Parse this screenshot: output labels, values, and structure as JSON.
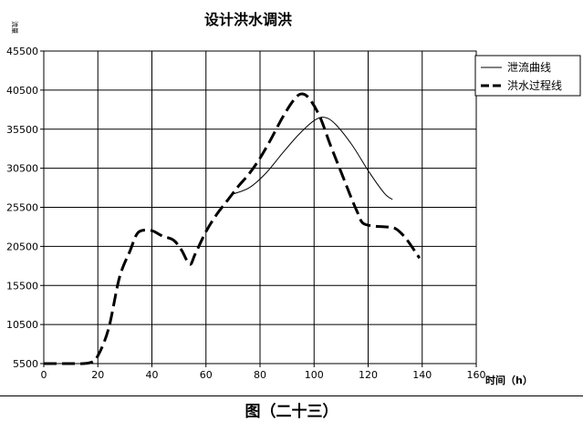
{
  "figure_caption": "图（二十三）",
  "chart_data": {
    "type": "line",
    "title": "设计洪水调洪",
    "ylabel": "流量",
    "xlabel": "时间（h）",
    "xlim": [
      0,
      160
    ],
    "ylim": [
      5500,
      45500
    ],
    "x_ticks": [
      "0",
      "20",
      "40",
      "60",
      "80",
      "100",
      "120",
      "140",
      "160"
    ],
    "y_ticks": [
      "5500",
      "10500",
      "15500",
      "20500",
      "25500",
      "30500",
      "35500",
      "40500",
      "45500"
    ],
    "grid": true,
    "legend_position": "top-right",
    "series": [
      {
        "name": "泄流曲线",
        "style": "thin-solid",
        "color": "#000000",
        "points": [
          [
            70,
            27200
          ],
          [
            76,
            28000
          ],
          [
            82,
            29800
          ],
          [
            88,
            32300
          ],
          [
            94,
            34700
          ],
          [
            100,
            36600
          ],
          [
            104,
            37000
          ],
          [
            108,
            36100
          ],
          [
            114,
            33500
          ],
          [
            120,
            30200
          ],
          [
            126,
            27300
          ],
          [
            129,
            26500
          ]
        ]
      },
      {
        "name": "洪水过程线",
        "style": "thick-dashed",
        "color": "#000000",
        "points": [
          [
            0,
            5500
          ],
          [
            10,
            5500
          ],
          [
            17,
            5600
          ],
          [
            20,
            6500
          ],
          [
            24,
            10000
          ],
          [
            28,
            16500
          ],
          [
            32,
            20000
          ],
          [
            34,
            21800
          ],
          [
            36,
            22500
          ],
          [
            40,
            22500
          ],
          [
            44,
            21800
          ],
          [
            48,
            21300
          ],
          [
            51,
            20000
          ],
          [
            54,
            18200
          ],
          [
            56,
            19500
          ],
          [
            60,
            22400
          ],
          [
            64,
            24600
          ],
          [
            68,
            26400
          ],
          [
            72,
            28200
          ],
          [
            76,
            29800
          ],
          [
            80,
            31800
          ],
          [
            84,
            34200
          ],
          [
            88,
            36800
          ],
          [
            92,
            39000
          ],
          [
            95,
            40000
          ],
          [
            98,
            39500
          ],
          [
            102,
            37200
          ],
          [
            106,
            33500
          ],
          [
            110,
            30000
          ],
          [
            114,
            26500
          ],
          [
            116,
            24900
          ],
          [
            118,
            23500
          ],
          [
            122,
            23100
          ],
          [
            126,
            23000
          ],
          [
            130,
            22800
          ],
          [
            134,
            21500
          ],
          [
            139,
            19000
          ]
        ]
      }
    ]
  }
}
